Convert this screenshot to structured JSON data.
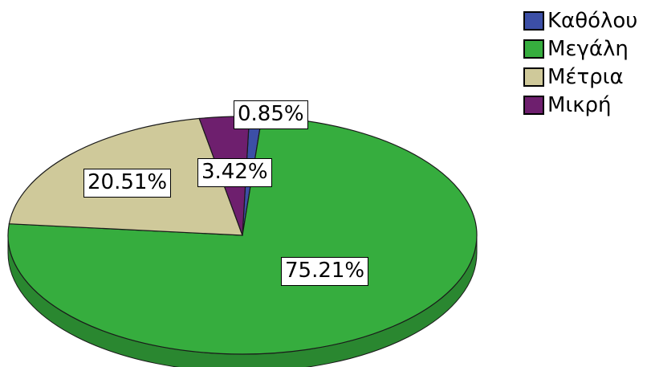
{
  "chart_data": {
    "type": "pie",
    "title": "",
    "slices": [
      {
        "label": "Καθόλου",
        "value": 0.85,
        "display": "0.85%",
        "color": "#3c4fa6"
      },
      {
        "label": "Μεγάλη",
        "value": 75.21,
        "display": "75.21%",
        "color": "#36ad3e"
      },
      {
        "label": "Μέτρια",
        "value": 20.51,
        "display": "20.51%",
        "color": "#cfc99a"
      },
      {
        "label": "Μικρή",
        "value": 3.42,
        "display": "3.42%",
        "color": "#6e1f6e"
      }
    ],
    "legend_position": "top-right",
    "style": "3d"
  }
}
